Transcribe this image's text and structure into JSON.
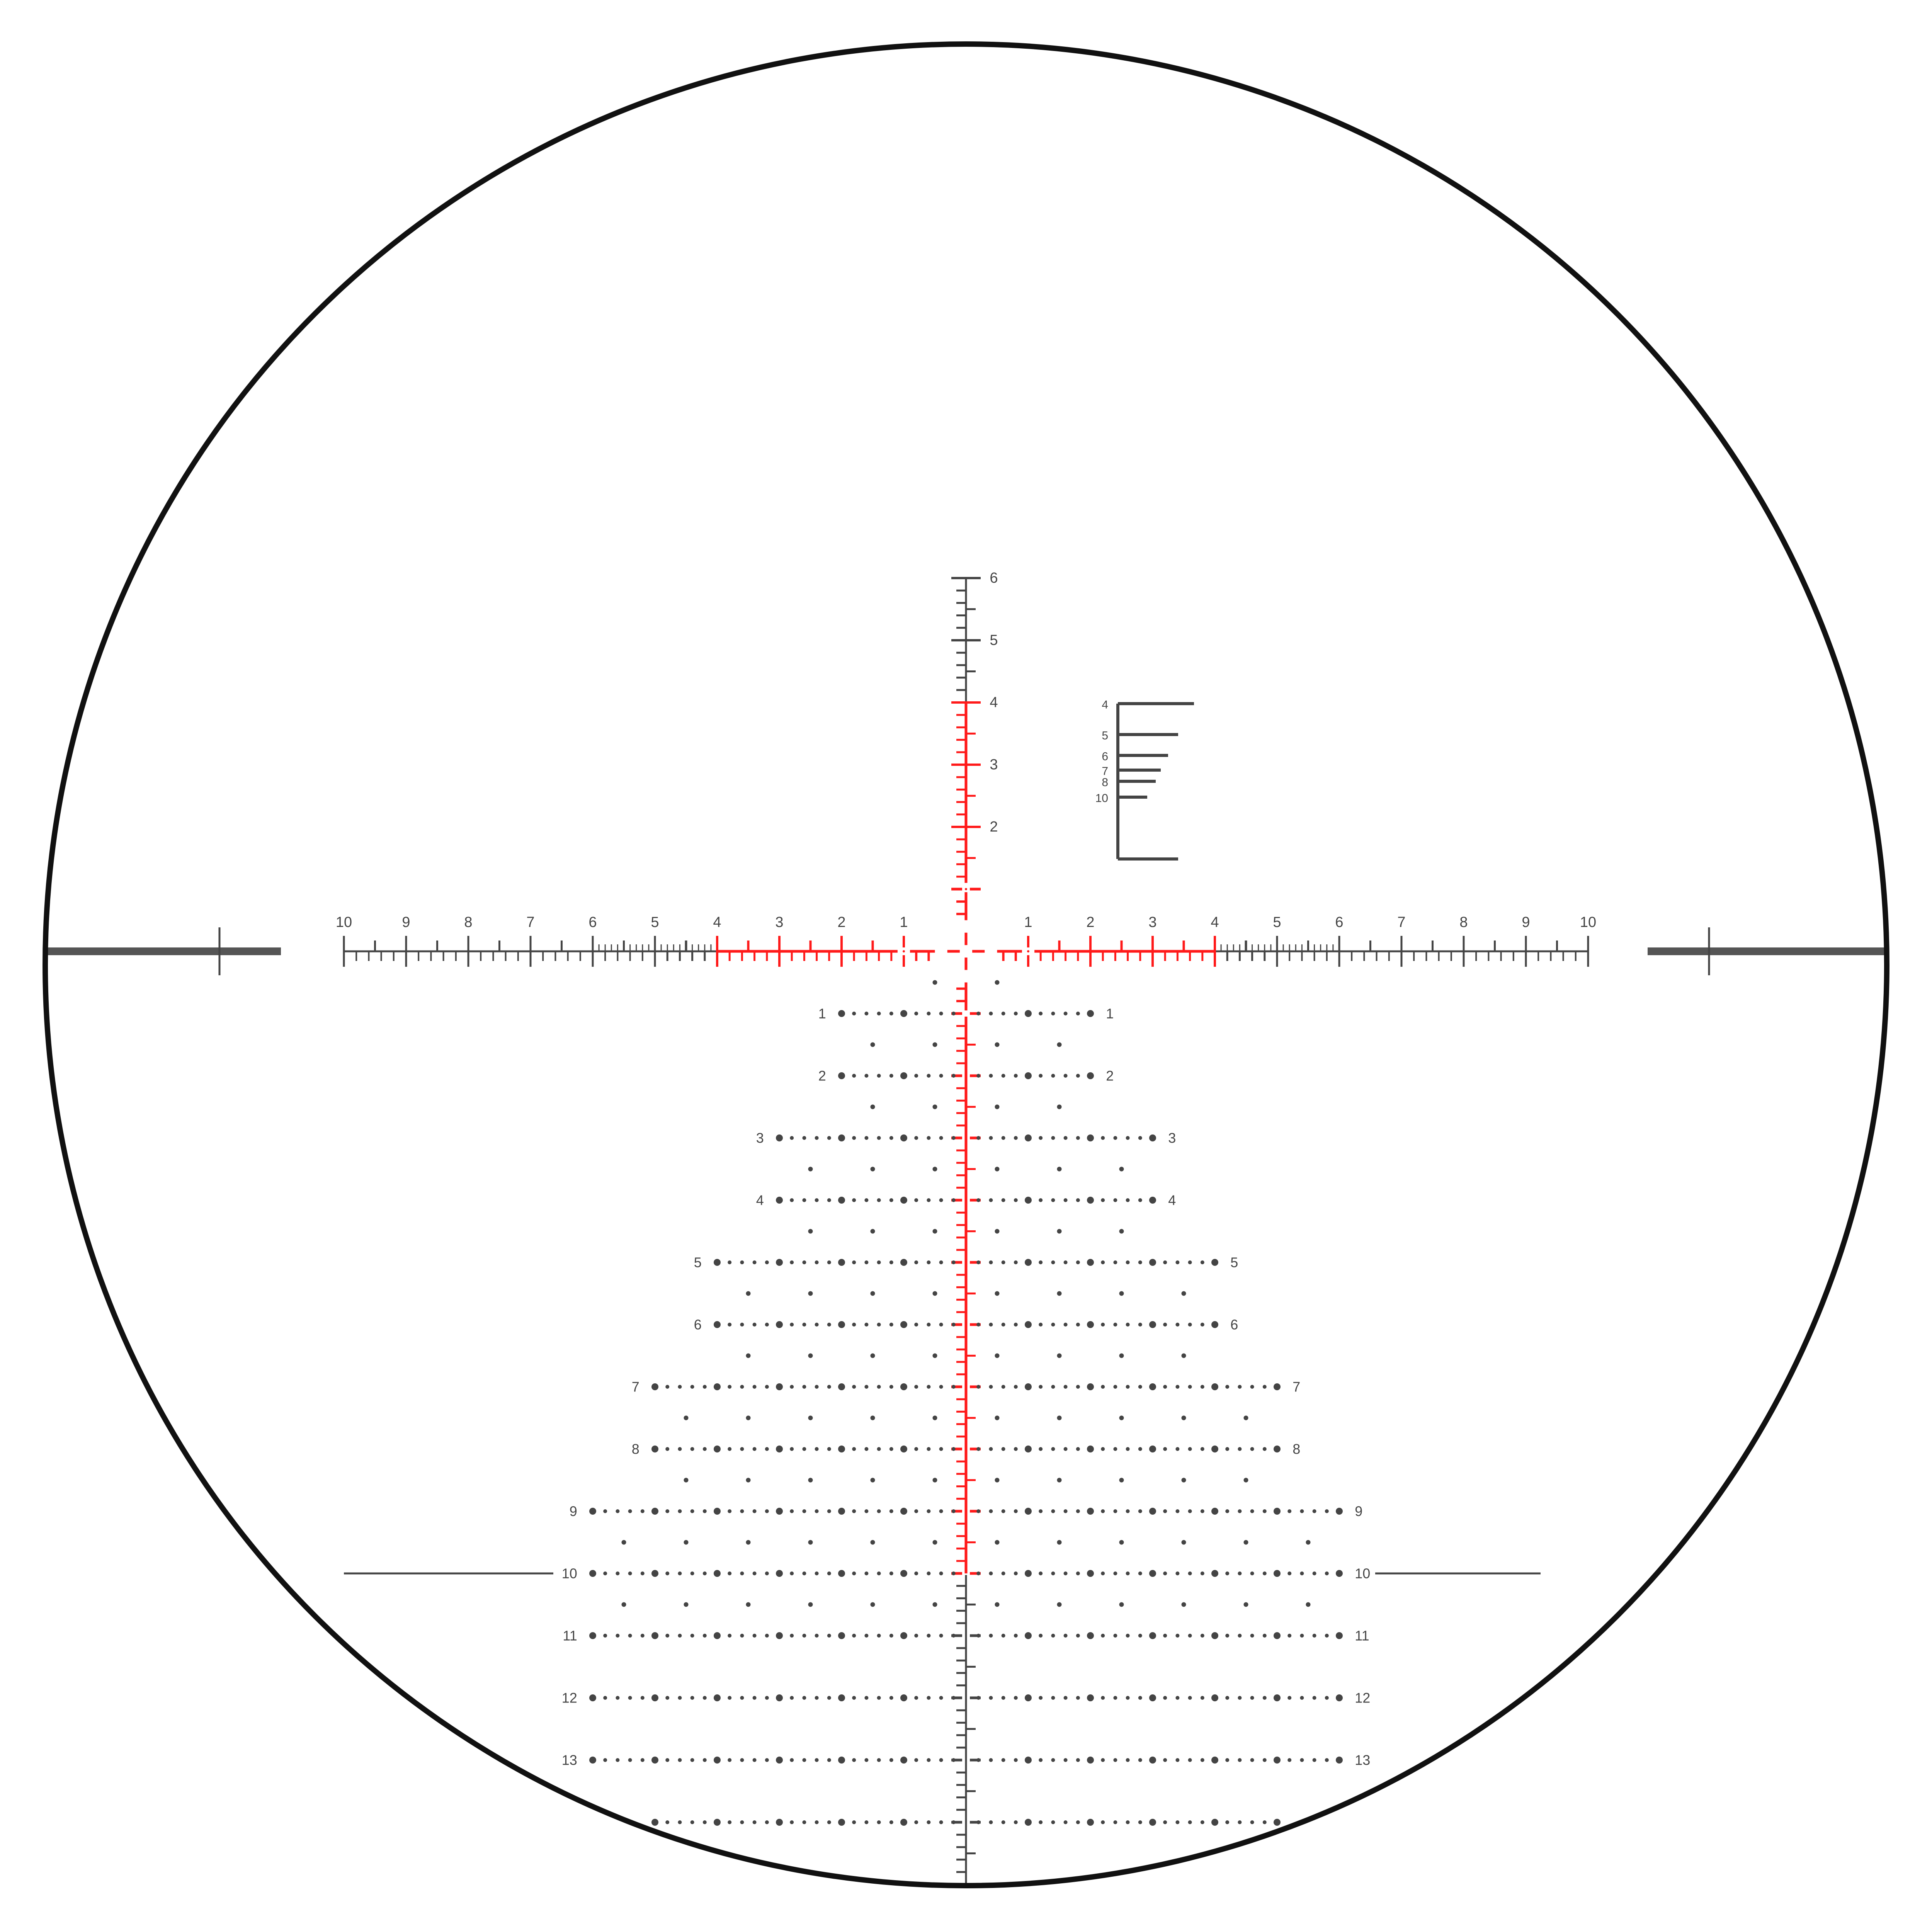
{
  "colors": {
    "illuminated": "#ff1a1a",
    "etched": "#444444",
    "outline": "#111111",
    "post": "#555555"
  },
  "horizontal_scale": {
    "labels_left": [
      "10",
      "9",
      "8",
      "7",
      "6",
      "5",
      "4",
      "3",
      "2",
      "1"
    ],
    "labels_right": [
      "1",
      "2",
      "3",
      "4",
      "5",
      "6",
      "7",
      "8",
      "9",
      "10"
    ],
    "extent_mil": 10,
    "red_to_mil": 4
  },
  "upper_stadia": {
    "labels": [
      "2",
      "3",
      "4",
      "5",
      "6"
    ],
    "extent_mil": 6,
    "red_to_mil": 4
  },
  "lower_stadia": {
    "red_to_mil": 10,
    "extent_mil": 15
  },
  "holdover_rows": [
    {
      "label": "1",
      "half_width_mil": 2
    },
    {
      "label": "2",
      "half_width_mil": 2
    },
    {
      "label": "3",
      "half_width_mil": 3
    },
    {
      "label": "4",
      "half_width_mil": 3
    },
    {
      "label": "5",
      "half_width_mil": 4
    },
    {
      "label": "6",
      "half_width_mil": 4
    },
    {
      "label": "7",
      "half_width_mil": 5
    },
    {
      "label": "8",
      "half_width_mil": 5
    },
    {
      "label": "9",
      "half_width_mil": 6
    },
    {
      "label": "10",
      "half_width_mil": 6
    },
    {
      "label": "11",
      "half_width_mil": 6
    },
    {
      "label": "12",
      "half_width_mil": 6
    },
    {
      "label": "13",
      "half_width_mil": 6
    },
    {
      "label": "",
      "half_width_mil": 5
    }
  ],
  "half_rows_half_width_mil": [
    0.5,
    1.5,
    1.5,
    2.5,
    2.5,
    3.5,
    3.5,
    4.5,
    4.5,
    5.5,
    5.5
  ],
  "rangefinder": {
    "labels": [
      "4",
      "5",
      "6",
      "7",
      "8",
      "10"
    ]
  }
}
